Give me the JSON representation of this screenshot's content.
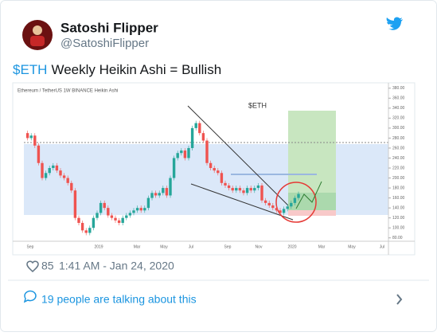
{
  "tweet": {
    "name": "Satoshi Flipper",
    "handle": "@SatoshiFlipper",
    "text_link": "$ETH",
    "text": "Weekly Heikin Ashi = Bullish",
    "likes": "85",
    "timestamp": "1:41 AM - Jan 24, 2020",
    "conversation": "19 people are talking about this"
  },
  "embedded_chart": {
    "type": "candlestick",
    "header": "Ethereum / TetherUS  1W  BINANCE  Heikin Ashi",
    "title": "$ETH",
    "x_labels": [
      "Sep",
      "2019",
      "Mar",
      "May",
      "Jul",
      "Sep",
      "Nov",
      "2020",
      "Mar",
      "May",
      "Jul"
    ],
    "ylim": [
      78,
      386
    ],
    "yticks": [
      {
        "value": 80,
        "label": "80.00"
      },
      {
        "value": 100,
        "label": "100.00"
      },
      {
        "value": 120,
        "label": "120.00"
      },
      {
        "value": 140,
        "label": "140.00"
      },
      {
        "value": 160,
        "label": "160.00"
      },
      {
        "value": 180,
        "label": "180.00"
      },
      {
        "value": 200,
        "label": "200.00"
      },
      {
        "value": 220,
        "label": "220.00"
      },
      {
        "value": 240,
        "label": "240.00"
      },
      {
        "value": 260,
        "label": "260.00"
      },
      {
        "value": 280,
        "label": "280.00"
      },
      {
        "value": 300,
        "label": "300.00"
      },
      {
        "value": 320,
        "label": "320.00"
      },
      {
        "value": 340,
        "label": "340.00"
      },
      {
        "value": 360,
        "label": "360.00"
      },
      {
        "value": 380,
        "label": "380.00"
      }
    ],
    "up_color": "#26a69a",
    "down_color": "#ef5350",
    "values": [
      290,
      280,
      285,
      265,
      230,
      200,
      210,
      220,
      225,
      215,
      205,
      200,
      190,
      175,
      120,
      110,
      95,
      90,
      100,
      120,
      130,
      150,
      140,
      125,
      120,
      115,
      110,
      120,
      125,
      130,
      135,
      140,
      135,
      140,
      160,
      170,
      165,
      170,
      180,
      165,
      200,
      240,
      250,
      255,
      240,
      260,
      300,
      310,
      290,
      275,
      230,
      220,
      215,
      210,
      190,
      185,
      180,
      175,
      180,
      175,
      170,
      180,
      175,
      180,
      185,
      155,
      150,
      145,
      140,
      135,
      130,
      138,
      143,
      150,
      160,
      168
    ]
  }
}
